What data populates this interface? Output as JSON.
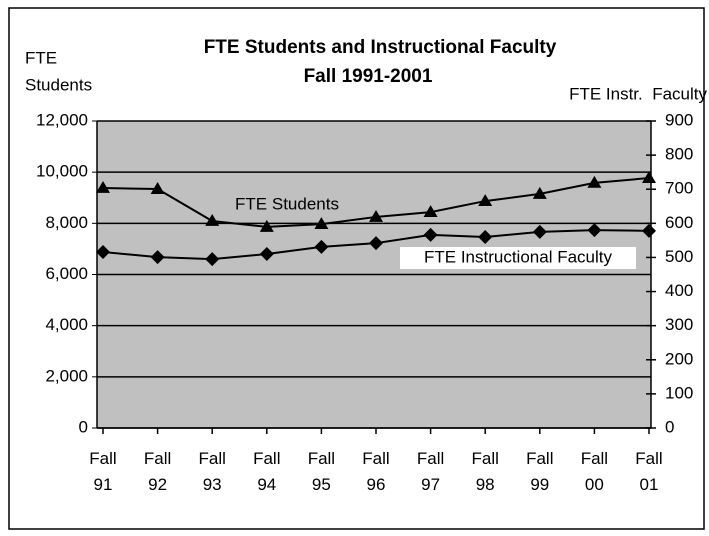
{
  "chart_data": {
    "type": "line",
    "title": [
      "FTE Students and Instructional Faculty",
      "Fall 1991-2001"
    ],
    "ylabel": [
      "FTE",
      "Students"
    ],
    "y2label": "FTE Instr.  Faculty",
    "categories": [
      "Fall 91",
      "Fall 92",
      "Fall 93",
      "Fall 94",
      "Fall 95",
      "Fall 96",
      "Fall 97",
      "Fall 98",
      "Fall 99",
      "Fall 00",
      "Fall 01"
    ],
    "series": [
      {
        "name": "FTE Students",
        "color": "#000000",
        "marker": "triangle",
        "values": [
          9380,
          9340,
          8090,
          7860,
          7970,
          8250,
          8440,
          8870,
          9150,
          9580,
          9770
        ]
      },
      {
        "name": "FTE Instructional Faculty",
        "color": "#000000",
        "marker": "diamond",
        "axis": "y2",
        "values": [
          516,
          501,
          495,
          510,
          531,
          542,
          566,
          560,
          575,
          580,
          578
        ]
      }
    ],
    "ylim": [
      0,
      12000
    ],
    "yticks": [
      0,
      {
        "value": 2000,
        "label": "2,000"
      },
      {
        "value": 4000,
        "label": "4,000"
      },
      {
        "value": 6000,
        "label": "6,000"
      },
      {
        "value": 8000,
        "label": "8,000"
      },
      {
        "value": 10000,
        "label": "10,000"
      },
      {
        "value": 12000,
        "label": "12,000"
      }
    ],
    "y2lim": [
      0,
      900
    ],
    "y2ticks": [
      0,
      100,
      200,
      300,
      400,
      500,
      600,
      700,
      800,
      900
    ],
    "grid": true,
    "plot_background": "#c0c0c0"
  }
}
